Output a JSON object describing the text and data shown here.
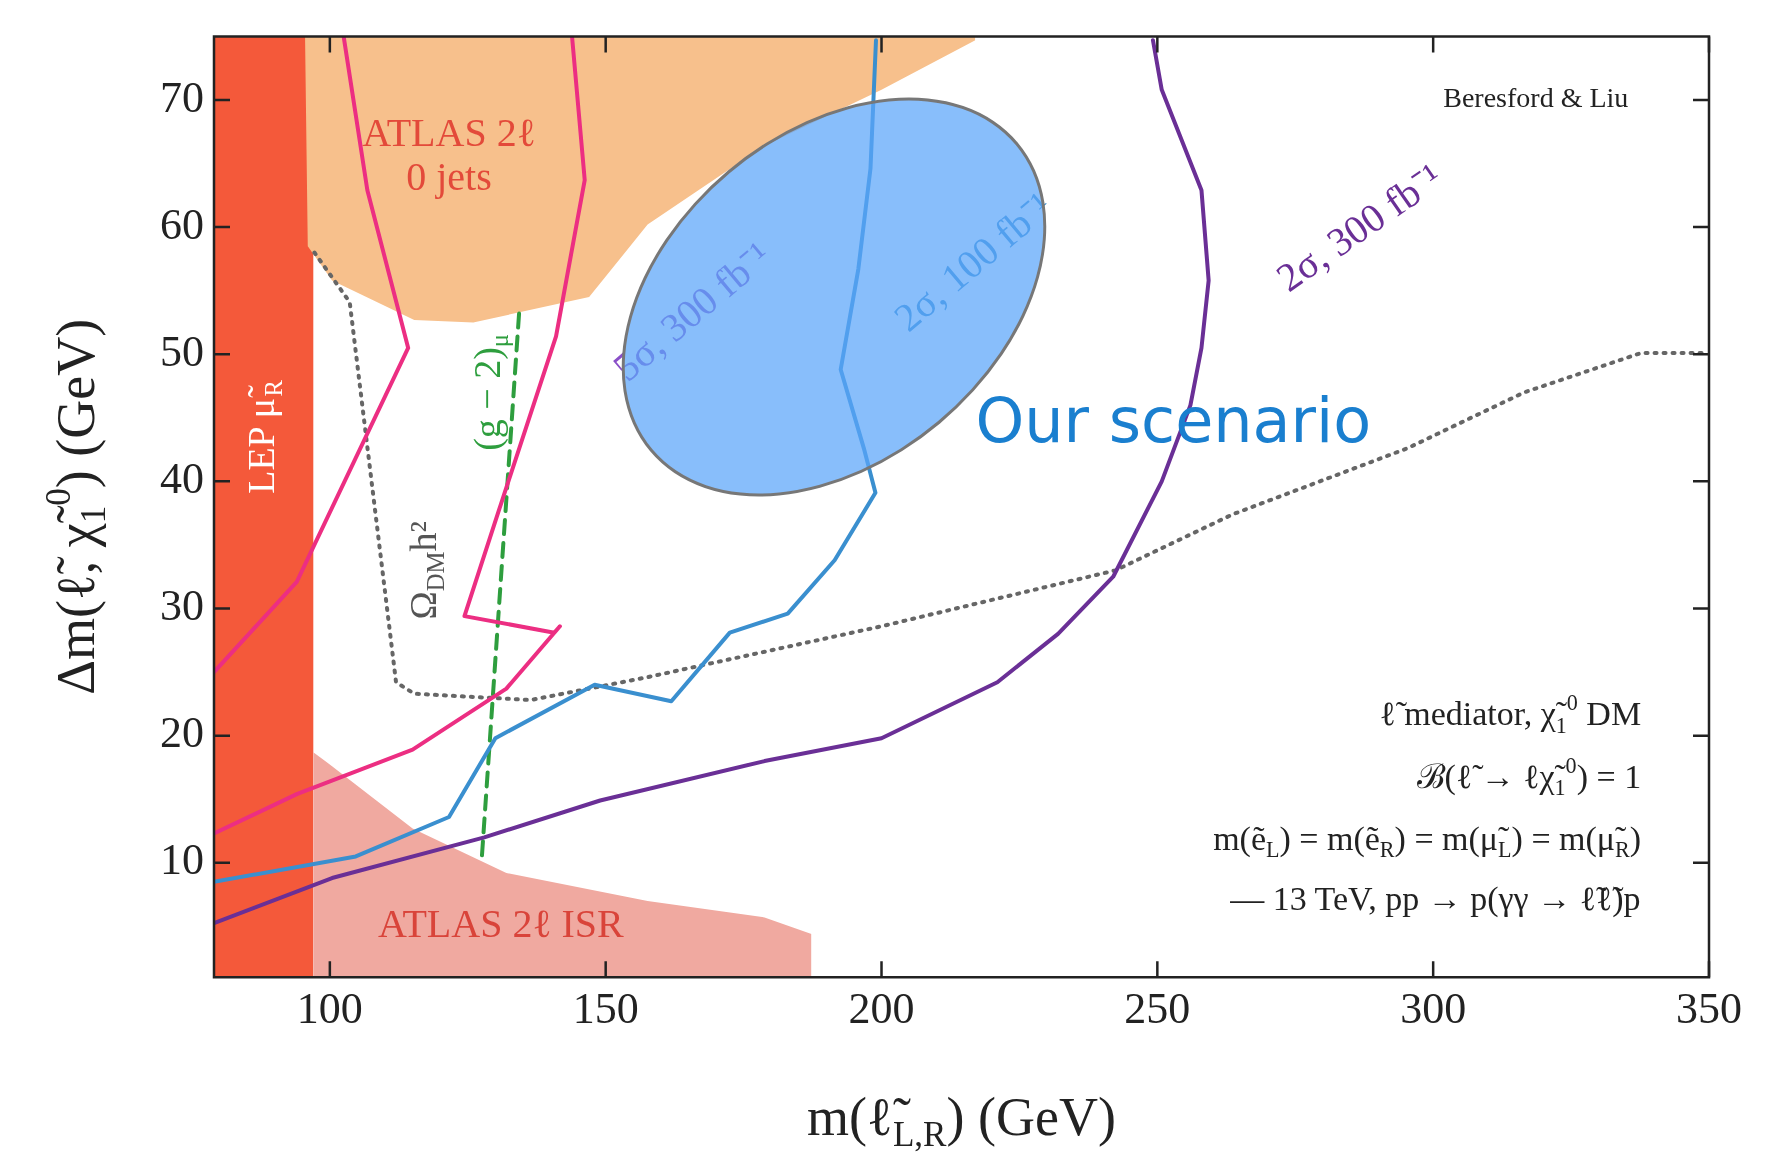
{
  "chart_data": {
    "type": "line",
    "xlabel": "m(ℓ̃$_{L,R}$) (GeV)",
    "ylabel": "Δm(ℓ̃, χ̃$_{1}$$^{0}$) (GeV)",
    "xlim": [
      79,
      350
    ],
    "xticks": [
      100,
      150,
      200,
      250,
      300,
      350
    ],
    "ylim": [
      1,
      75
    ],
    "yticks": [
      10,
      20,
      30,
      40,
      50,
      60,
      70
    ],
    "marker": "none",
    "legend": false,
    "bands": [
      {
        "axis": "x",
        "from": 79,
        "to": 97,
        "label": "LEP μ̃$_{R}$",
        "color": "#f4593a"
      }
    ],
    "series": [
      {
        "type": "area",
        "color": "#f7c08c",
        "x": [
          95.5,
          96,
          100.4,
          115.3,
          126,
          147,
          157.6,
          178.8,
          200,
          217
        ],
        "values": [
          75,
          58.5,
          55.8,
          52.7,
          52.5,
          54.5,
          60.2,
          66.4,
          70.8,
          74.7
        ]
      },
      {
        "type": "area",
        "color": "#f0a9a0",
        "x": [
          97,
          100.4,
          115,
          132,
          157.6,
          178.8,
          187.3
        ],
        "values": [
          18.7,
          17.6,
          12.7,
          9.2,
          7,
          5.7,
          4.4
        ]
      },
      {
        "color": "#ec2e82",
        "x": [
          79,
          94,
          115,
          132,
          141.7,
          140.7,
          124.4,
          131,
          141,
          146.2,
          143.9
        ],
        "values": [
          12.3,
          15.4,
          18.9,
          23.7,
          28.6,
          28.1,
          29.4,
          38.2,
          51.4,
          63.7,
          75
        ]
      },
      {
        "color": "#ec2e82",
        "x": [
          79,
          94,
          114.2,
          106.8,
          102.5
        ],
        "values": [
          25,
          32.1,
          50.5,
          62.9,
          75
        ]
      },
      {
        "color": "#3a8fcf",
        "x": [
          79,
          104.7,
          121.6,
          130,
          148,
          161.9,
          172.5,
          183,
          191.5,
          198.9,
          196.8,
          192.6,
          195.8,
          198,
          199
        ],
        "values": [
          8.5,
          10.5,
          13.6,
          19.8,
          24,
          22.7,
          28.1,
          29.6,
          33.8,
          39.1,
          42.6,
          48.8,
          56.7,
          64.6,
          74.7
        ]
      },
      {
        "color": "#6a2f96",
        "x": [
          79,
          100.4,
          128,
          149,
          178.8,
          200,
          221,
          232,
          242,
          250.8,
          256,
          258,
          259.3,
          258,
          250.8,
          249.2
        ],
        "values": [
          5.25,
          8.8,
          12,
          14.9,
          18,
          19.8,
          24.2,
          28,
          32.5,
          40,
          46,
          50.5,
          55.8,
          62.9,
          70.8,
          74.7
        ]
      },
      {
        "color": "#2e9e3e",
        "line_style": "dashed",
        "x": [
          134.3,
          127.5
        ],
        "values": [
          53.2,
          10.1
        ]
      },
      {
        "color": "#666666",
        "line_style": "dotted",
        "x": [
          97.2,
          103.6,
          112,
          115.3,
          136.4,
          157.6,
          200,
          221.2,
          242.4,
          263.6,
          295.3,
          316.5,
          337.7,
          349
        ],
        "values": [
          58,
          54.1,
          24.2,
          23.3,
          22.8,
          24.6,
          28.6,
          30.8,
          33,
          37.4,
          42.6,
          47,
          50.1,
          50.1
        ]
      }
    ],
    "annotations": [
      "ATLAS 2ℓ\n0 jets",
      "Ω$_{DM}$h²",
      "(g − 2)$_{μ}$",
      "5σ, 300 fb⁻¹",
      "2σ, 100 fb⁻¹",
      "2σ, 300 fb⁻¹",
      "ATLAS 2ℓ ISR",
      "Beresford & Liu",
      "Our scenario",
      "ℓ̃ mediator, χ̃$_{1}$$^{0}$ DM",
      "ℬ(ℓ̃ → ℓχ̃$_{1}$$^{0}$) = 1",
      "m(ẽ$_{L}$) = m(ẽ$_{R}$) = m(μ̃$_{L}$) = m(μ̃$_{R}$)",
      "— 13 TeV, pp → p(γγ → ℓ̃ℓ̃)p"
    ]
  }
}
